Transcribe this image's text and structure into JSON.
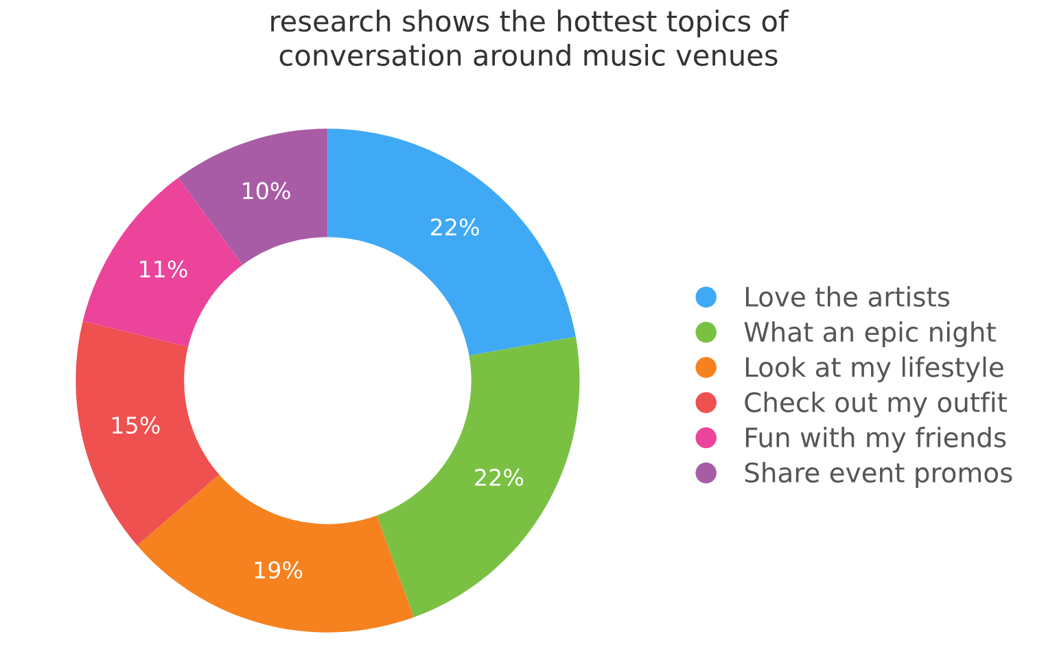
{
  "chart_data": {
    "type": "donut",
    "title": "research shows the hottest topics of\nconversation around music venues",
    "categories": [
      "Love the artists",
      "What an epic night",
      "Look at my lifestyle",
      "Check out my outfit",
      "Fun with my friends",
      "Share event promos"
    ],
    "values": [
      22,
      22,
      19,
      15,
      11,
      10
    ],
    "colors": [
      "#3fa9f5",
      "#7ac143",
      "#f5821f",
      "#ef5050",
      "#ec449a",
      "#a95ca6"
    ],
    "value_labels": [
      "22%",
      "22%",
      "19%",
      "15%",
      "11%",
      "10%"
    ],
    "legend": "right"
  }
}
